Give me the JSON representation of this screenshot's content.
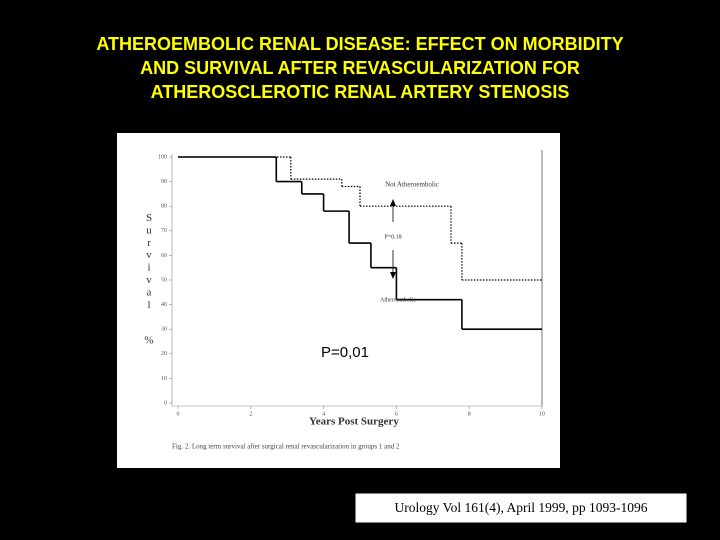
{
  "chart_data": {
    "type": "step",
    "title": [
      "ATHEROEMBOLIC RENAL DISEASE: EFFECT ON MORBIDITY",
      "AND SURVIVAL AFTER REVASCULARIZATION FOR",
      "ATHEROSCLEROTIC RENAL ARTERY STENOSIS"
    ],
    "x_label": "Years Post Surgery",
    "y_label": "Survival",
    "y_unit": "%",
    "caption": "Fig. 2. Long term survival after surgical renal revascularization in groups 1 and 2",
    "annotations": [
      "Not Atheroembolic",
      "P=0.18",
      "Atheroembolic",
      "P=0,01"
    ],
    "source": "Urology Vol 161(4), April 1999, pp 1093-1096",
    "xlim": [
      0,
      10
    ],
    "ylim": [
      0,
      100
    ],
    "xticks": [
      0,
      2,
      4,
      6,
      8,
      10
    ],
    "yticks": [
      0,
      10,
      20,
      30,
      40,
      50,
      60,
      70,
      80,
      90,
      100
    ],
    "series": [
      {
        "name": "Not Atheroembolic",
        "color": "#000000",
        "style": "dotted",
        "x": [
          0,
          3.1,
          4.5,
          5.0,
          7.5,
          7.8
        ],
        "values": [
          100,
          91,
          88,
          80,
          65,
          50
        ]
      },
      {
        "name": "Atheroembolic",
        "color": "#000000",
        "style": "solid",
        "x": [
          0,
          2.7,
          3.4,
          4.0,
          4.7,
          5.3,
          6.0,
          7.8
        ],
        "values": [
          100,
          90,
          85,
          78,
          65,
          55,
          42,
          30
        ]
      }
    ]
  }
}
